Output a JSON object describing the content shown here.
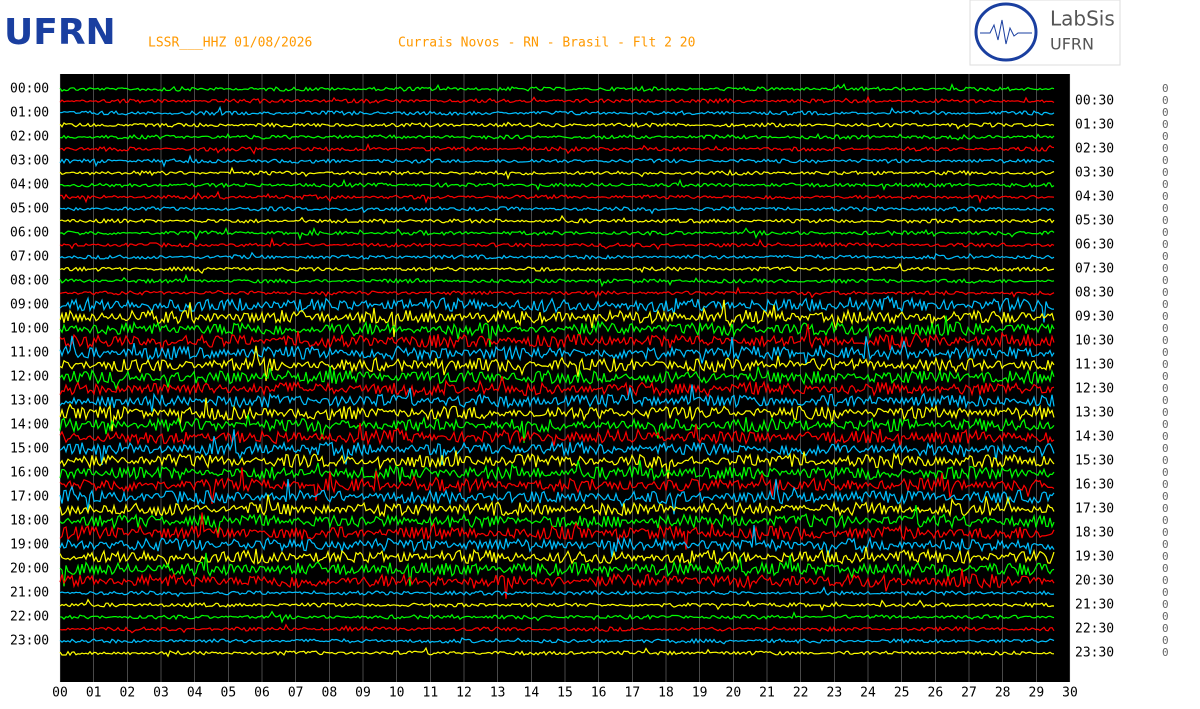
{
  "header": {
    "station": "LSSR___HHZ 01/08/2026",
    "location": "Currais Novos - RN - Brasil - Flt 2 20",
    "logo_left": "UFRN",
    "logo_right_title": "LabSis",
    "logo_right_sub": "UFRN"
  },
  "left_labels": [
    "00:00",
    "01:00",
    "02:00",
    "03:00",
    "04:00",
    "05:00",
    "06:00",
    "07:00",
    "08:00",
    "09:00",
    "10:00",
    "11:00",
    "12:00",
    "13:00",
    "14:00",
    "15:00",
    "16:00",
    "17:00",
    "18:00",
    "19:00",
    "20:00",
    "21:00",
    "22:00",
    "23:00"
  ],
  "right_labels": [
    "00:30",
    "01:30",
    "02:30",
    "03:30",
    "04:30",
    "05:30",
    "06:30",
    "07:30",
    "08:30",
    "09:30",
    "10:30",
    "11:30",
    "12:30",
    "13:30",
    "14:30",
    "15:30",
    "16:30",
    "17:30",
    "18:30",
    "19:30",
    "20:30",
    "21:30",
    "22:30",
    "23:30"
  ],
  "x_labels": [
    "00",
    "01",
    "02",
    "03",
    "04",
    "05",
    "06",
    "07",
    "08",
    "09",
    "10",
    "11",
    "12",
    "13",
    "14",
    "15",
    "16",
    "17",
    "18",
    "19",
    "20",
    "21",
    "22",
    "23",
    "24",
    "25",
    "26",
    "27",
    "28",
    "29",
    "30"
  ],
  "right_counts": [
    "0",
    "0",
    "0",
    "0",
    "0",
    "0",
    "0",
    "0",
    "0",
    "0",
    "0",
    "0",
    "0",
    "0",
    "0",
    "0",
    "0",
    "0",
    "0",
    "0",
    "0",
    "0",
    "0",
    "0",
    "0",
    "0",
    "0",
    "0",
    "0",
    "0",
    "0",
    "0",
    "0",
    "0",
    "0",
    "0",
    "0",
    "0",
    "0",
    "0",
    "0",
    "0",
    "0",
    "0",
    "0",
    "0",
    "0",
    "0"
  ]
}
